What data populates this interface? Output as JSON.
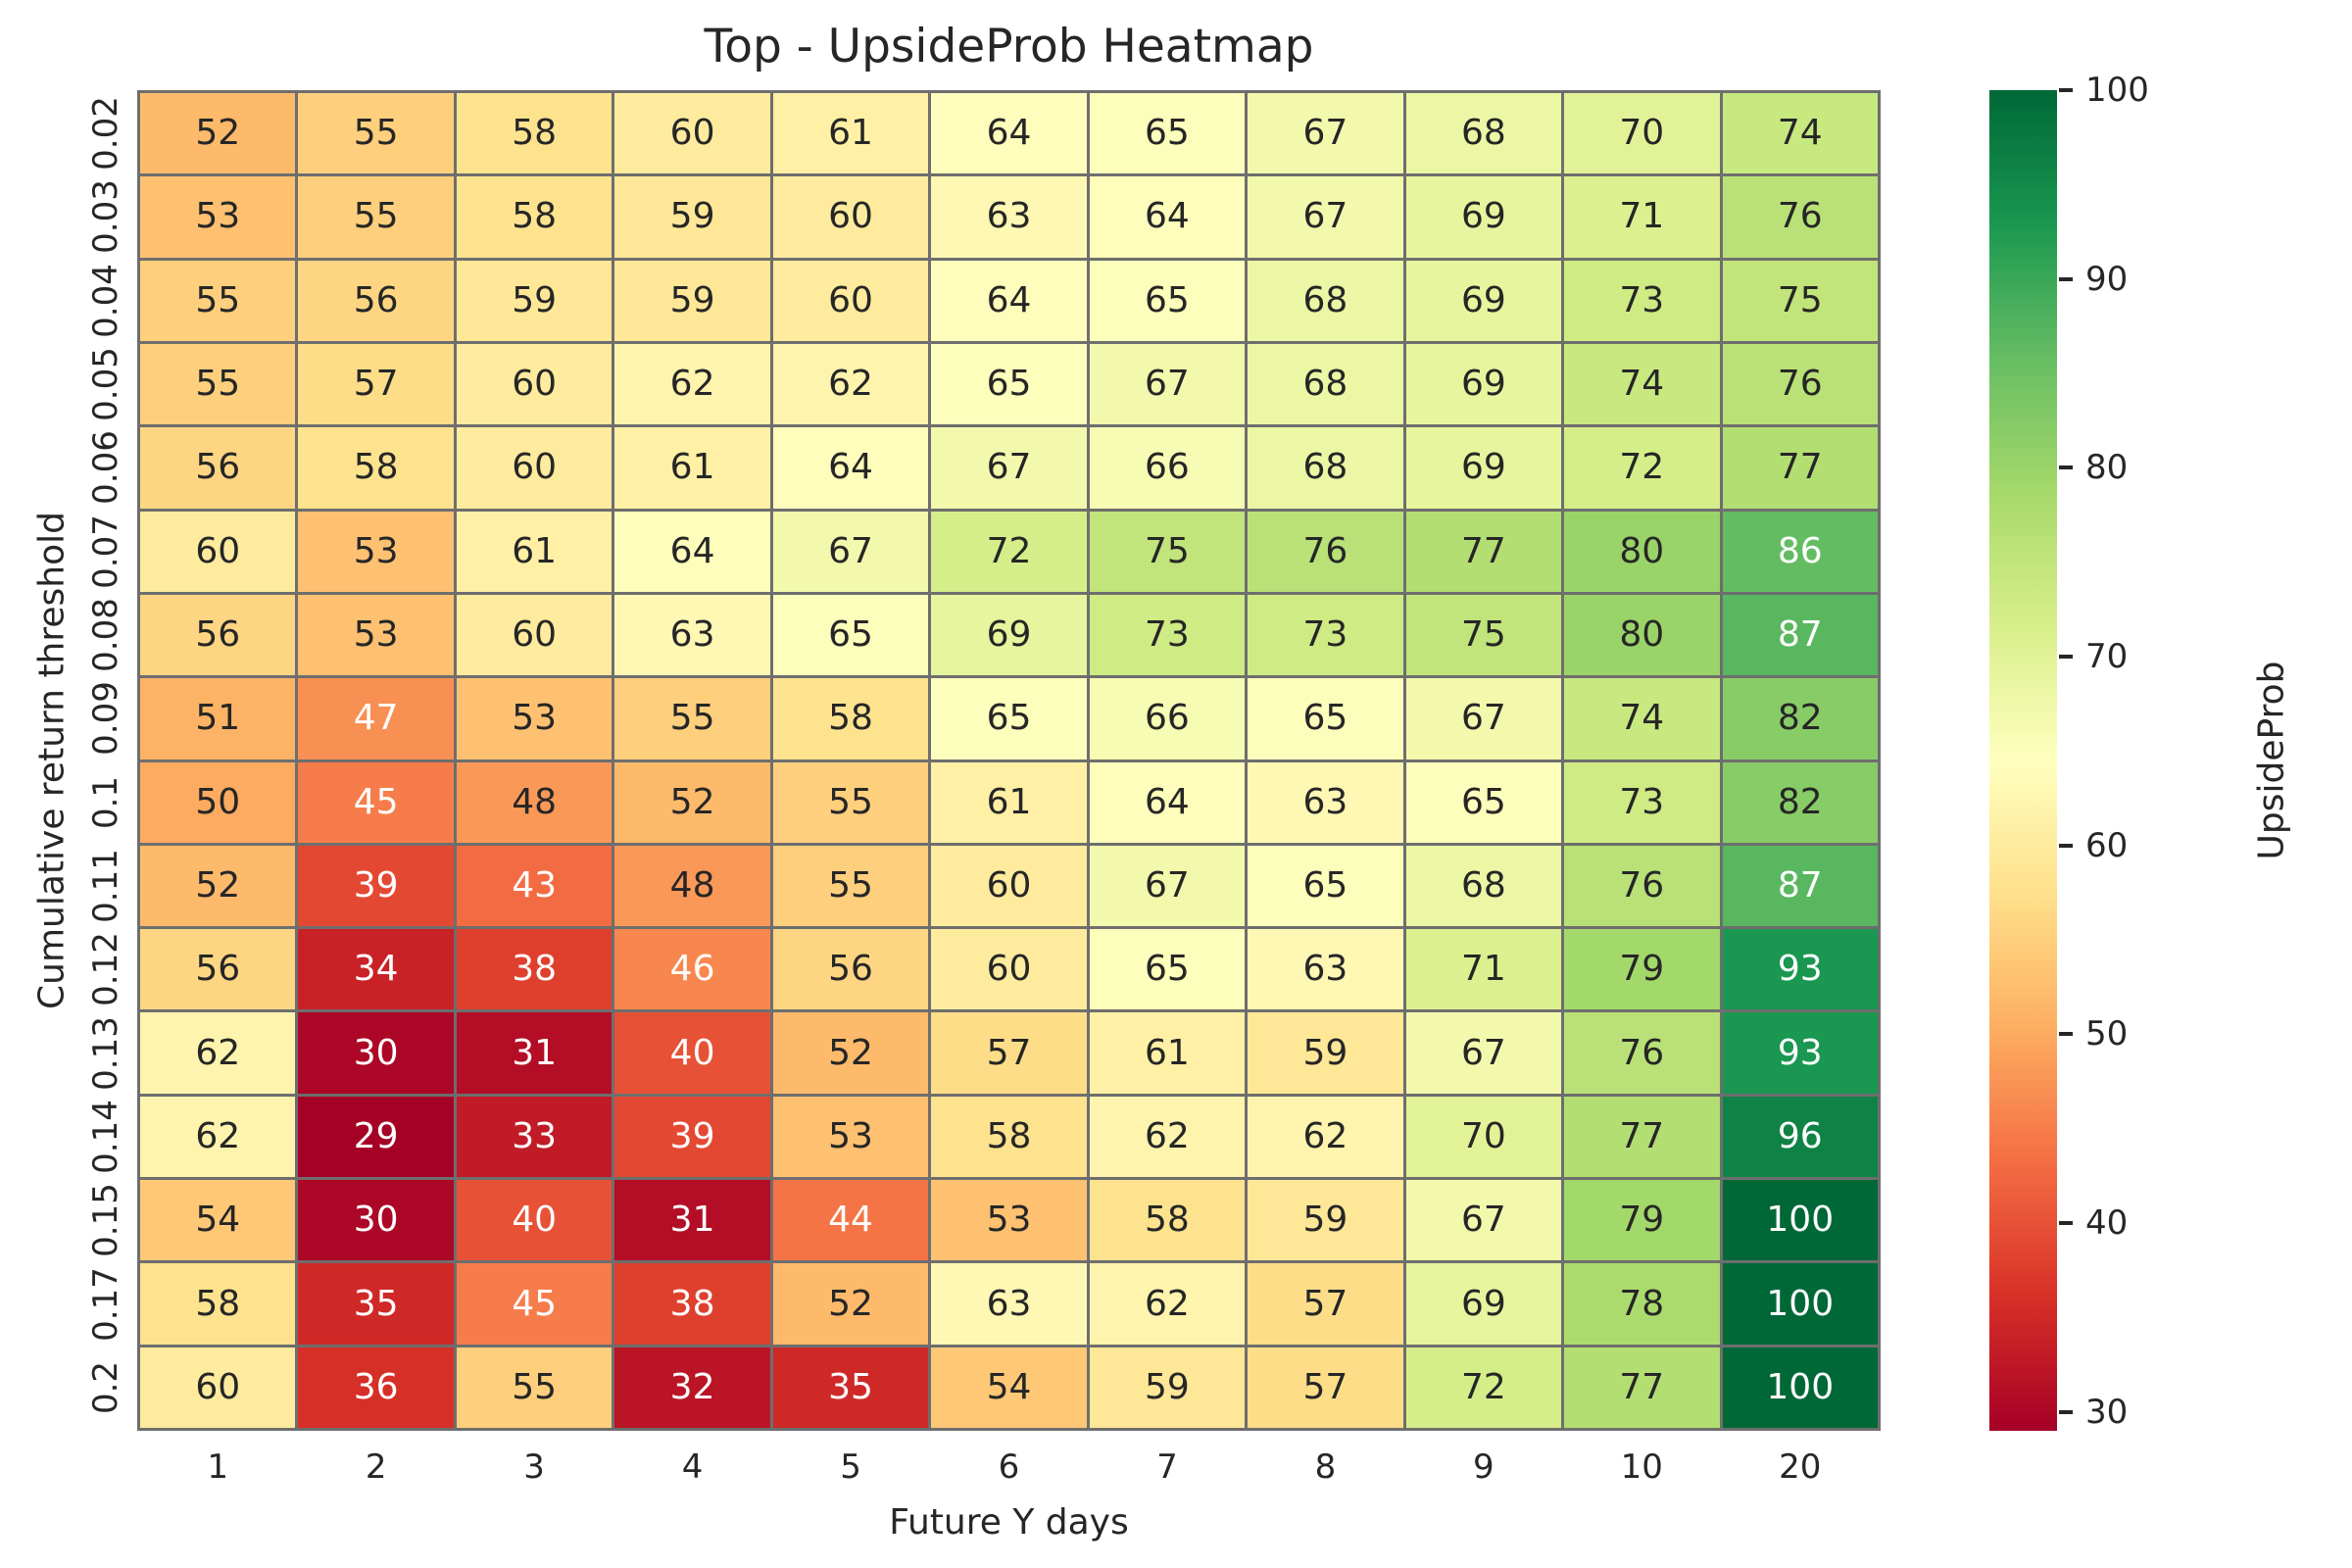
{
  "figure": {
    "background": "#ffffff",
    "text_color": "#262626",
    "grid_line_color": "#6e6e6e"
  },
  "chart_data": {
    "type": "heatmap",
    "title": "Top - UpsideProb Heatmap",
    "xlabel": "Future Y days",
    "ylabel": "Cumulative return threshold",
    "x_categories": [
      "1",
      "2",
      "3",
      "4",
      "5",
      "6",
      "7",
      "8",
      "9",
      "10",
      "20"
    ],
    "y_categories": [
      "0.02",
      "0.03",
      "0.04",
      "0.05",
      "0.06",
      "0.07",
      "0.08",
      "0.09",
      "0.1",
      "0.11",
      "0.12",
      "0.13",
      "0.14",
      "0.15",
      "0.17",
      "0.2"
    ],
    "values": [
      [
        52,
        55,
        58,
        60,
        61,
        64,
        65,
        67,
        68,
        70,
        74
      ],
      [
        53,
        55,
        58,
        59,
        60,
        63,
        64,
        67,
        69,
        71,
        76
      ],
      [
        55,
        56,
        59,
        59,
        60,
        64,
        65,
        68,
        69,
        73,
        75
      ],
      [
        55,
        57,
        60,
        62,
        62,
        65,
        67,
        68,
        69,
        74,
        76
      ],
      [
        56,
        58,
        60,
        61,
        64,
        67,
        66,
        68,
        69,
        72,
        77
      ],
      [
        60,
        53,
        61,
        64,
        67,
        72,
        75,
        76,
        77,
        80,
        86
      ],
      [
        56,
        53,
        60,
        63,
        65,
        69,
        73,
        73,
        75,
        80,
        87
      ],
      [
        51,
        47,
        53,
        55,
        58,
        65,
        66,
        65,
        67,
        74,
        82
      ],
      [
        50,
        45,
        48,
        52,
        55,
        61,
        64,
        63,
        65,
        73,
        82
      ],
      [
        52,
        39,
        43,
        48,
        55,
        60,
        67,
        65,
        68,
        76,
        87
      ],
      [
        56,
        34,
        38,
        46,
        56,
        60,
        65,
        63,
        71,
        79,
        93
      ],
      [
        62,
        30,
        31,
        40,
        52,
        57,
        61,
        59,
        67,
        76,
        93
      ],
      [
        62,
        29,
        33,
        39,
        53,
        58,
        62,
        62,
        70,
        77,
        96
      ],
      [
        54,
        30,
        40,
        31,
        44,
        53,
        58,
        59,
        67,
        79,
        100
      ],
      [
        58,
        35,
        45,
        38,
        52,
        63,
        62,
        57,
        69,
        78,
        100
      ],
      [
        60,
        36,
        55,
        32,
        35,
        54,
        59,
        57,
        72,
        77,
        100
      ]
    ],
    "vmin": 29,
    "vmax": 100,
    "colormap": "RdYlGn",
    "colormap_stops": [
      "#a50026",
      "#d73027",
      "#f46d43",
      "#fdae61",
      "#fee08b",
      "#ffffbf",
      "#d9ef8b",
      "#a6d96a",
      "#66bd63",
      "#1a9850",
      "#006837"
    ],
    "annotations": true,
    "annotation_dark_color": "#262626",
    "annotation_light_color": "#ffffff",
    "colorbar": {
      "label": "UpsideProb",
      "ticks": [
        30,
        40,
        50,
        60,
        70,
        80,
        90,
        100
      ],
      "position": "right"
    }
  }
}
